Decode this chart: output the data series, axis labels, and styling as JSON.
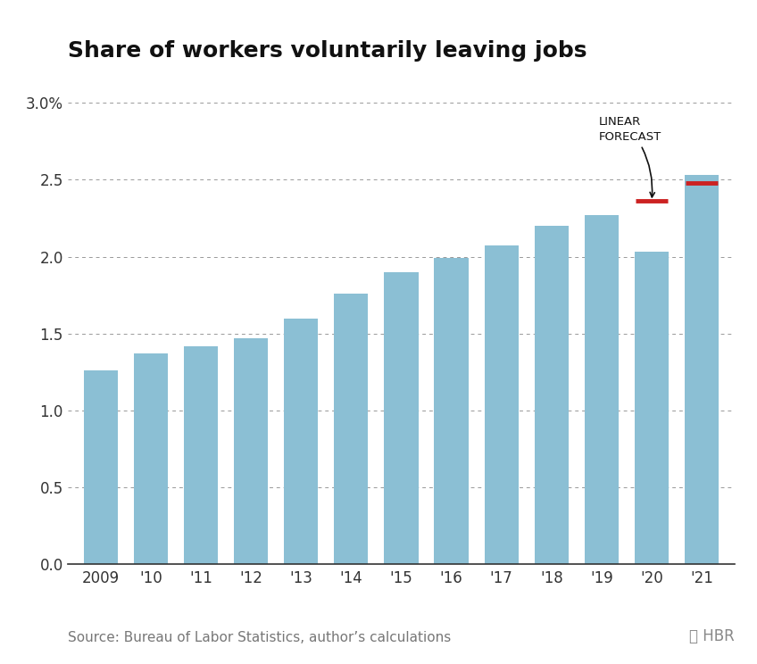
{
  "title": "Share of workers voluntarily leaving jobs",
  "years": [
    "2009",
    "'10",
    "'11",
    "'12",
    "'13",
    "'14",
    "'15",
    "'16",
    "'17",
    "'18",
    "'19",
    "'20",
    "'21"
  ],
  "values": [
    1.26,
    1.37,
    1.42,
    1.47,
    1.6,
    1.76,
    1.9,
    1.99,
    2.07,
    2.2,
    2.27,
    2.03,
    2.53
  ],
  "bar_color": "#8bbfd4",
  "forecast_color": "#cc2222",
  "forecast_values": {
    "2020_idx": 11,
    "2021_idx": 12,
    "2020_val": 2.36,
    "2021_val": 2.48
  },
  "ylim": [
    0,
    3.15
  ],
  "yticks": [
    0.0,
    0.5,
    1.0,
    1.5,
    2.0,
    2.5,
    3.0
  ],
  "ytick_labels": [
    "0.0",
    "0.5",
    "1.0",
    "1.5",
    "2.0",
    "2.5",
    "3.0%"
  ],
  "annotation_text": "LINEAR\nFORECAST",
  "source_text": "Source: Bureau of Labor Statistics, author’s calculations",
  "background_color": "#ffffff",
  "grid_color": "#999999",
  "title_fontsize": 18,
  "axis_fontsize": 12,
  "source_fontsize": 11
}
